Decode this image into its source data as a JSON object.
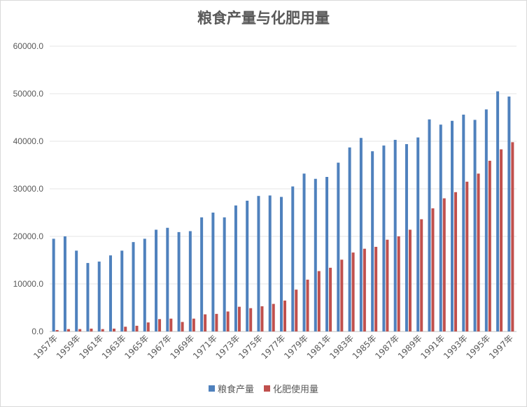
{
  "chart_data": {
    "type": "bar",
    "title": "粮食产量与化肥用量",
    "xlabel": "",
    "ylabel": "",
    "ylim": [
      0,
      60000
    ],
    "yticks": [
      "0.0",
      "10000.0",
      "20000.0",
      "30000.0",
      "40000.0",
      "50000.0",
      "60000.0"
    ],
    "grid": true,
    "legend_position": "bottom",
    "categories": [
      "1957年",
      "1958年",
      "1959年",
      "1960年",
      "1961年",
      "1962年",
      "1963年",
      "1964年",
      "1965年",
      "1966年",
      "1967年",
      "1968年",
      "1969年",
      "1970年",
      "1971年",
      "1972年",
      "1973年",
      "1974年",
      "1975年",
      "1976年",
      "1977年",
      "1978年",
      "1979年",
      "1980年",
      "1981年",
      "1982年",
      "1983年",
      "1984年",
      "1985年",
      "1986年",
      "1987年",
      "1988年",
      "1989年",
      "1990年",
      "1991年",
      "1992年",
      "1993年",
      "1994年",
      "1995年",
      "1996年",
      "1997年"
    ],
    "xtick_labels": [
      "1957年",
      "1959年",
      "1961年",
      "1963年",
      "1965年",
      "1967年",
      "1969年",
      "1971年",
      "1973年",
      "1975年",
      "1977年",
      "1979年",
      "1981年",
      "1983年",
      "1985年",
      "1987年",
      "1989年",
      "1991年",
      "1993年",
      "1995年",
      "1997年"
    ],
    "series": [
      {
        "name": "粮食产量",
        "color": "#4f81bd",
        "values": [
          19500,
          20000,
          17000,
          14400,
          14700,
          16000,
          17000,
          18800,
          19500,
          21400,
          21800,
          20900,
          21100,
          24000,
          25000,
          24000,
          26500,
          27500,
          28500,
          28600,
          28300,
          30500,
          33200,
          32100,
          32500,
          35500,
          38700,
          40700,
          37900,
          39100,
          40300,
          39400,
          40800,
          44600,
          43500,
          44300,
          45600,
          44500,
          46700,
          50500,
          49400
        ]
      },
      {
        "name": "化肥使用量",
        "color": "#c0504d",
        "values": [
          300,
          500,
          500,
          600,
          500,
          600,
          1000,
          1200,
          1900,
          2600,
          2700,
          2000,
          2700,
          3600,
          3700,
          4200,
          5200,
          4900,
          5300,
          5800,
          6500,
          8800,
          10900,
          12700,
          13400,
          15100,
          16600,
          17400,
          17800,
          19300,
          20000,
          21400,
          23600,
          25900,
          28000,
          29300,
          31500,
          33200,
          35900,
          38300,
          39800
        ]
      }
    ]
  }
}
